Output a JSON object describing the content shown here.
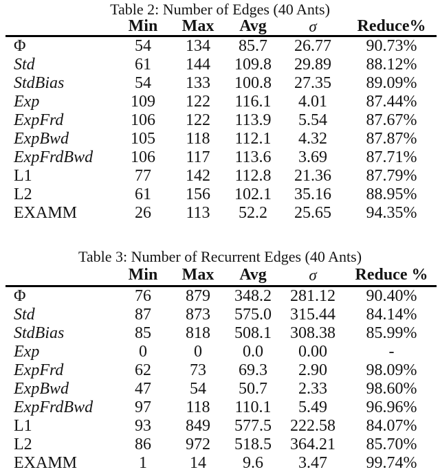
{
  "page": {
    "background_color": "#ffffff",
    "text_color": "#141414",
    "rule_color": "#000000"
  },
  "tables": [
    {
      "caption": "Table 2: Number of Edges (40 Ants)",
      "headers": [
        "Min",
        "Max",
        "Avg",
        "σ",
        "Reduce%"
      ],
      "rows": [
        {
          "label": "Φ",
          "label_italic": false,
          "values": [
            "54",
            "134",
            "85.7",
            "26.77",
            "90.73%"
          ]
        },
        {
          "label": "Std",
          "label_italic": true,
          "values": [
            "61",
            "144",
            "109.8",
            "29.89",
            "88.12%"
          ]
        },
        {
          "label": "StdBias",
          "label_italic": true,
          "values": [
            "54",
            "133",
            "100.8",
            "27.35",
            "89.09%"
          ]
        },
        {
          "label": "Exp",
          "label_italic": true,
          "values": [
            "109",
            "122",
            "116.1",
            "4.01",
            "87.44%"
          ]
        },
        {
          "label": "ExpFrd",
          "label_italic": true,
          "values": [
            "106",
            "122",
            "113.9",
            "5.54",
            "87.67%"
          ]
        },
        {
          "label": "ExpBwd",
          "label_italic": true,
          "values": [
            "105",
            "118",
            "112.1",
            "4.32",
            "87.87%"
          ]
        },
        {
          "label": "ExpFrdBwd",
          "label_italic": true,
          "values": [
            "106",
            "117",
            "113.6",
            "3.69",
            "87.71%"
          ]
        },
        {
          "label": "L1",
          "label_italic": false,
          "values": [
            "77",
            "142",
            "112.8",
            "21.36",
            "87.79%"
          ]
        },
        {
          "label": "L2",
          "label_italic": false,
          "values": [
            "61",
            "156",
            "102.1",
            "35.16",
            "88.95%"
          ]
        },
        {
          "label": "EXAMM",
          "label_italic": false,
          "values": [
            "26",
            "113",
            "52.2",
            "25.65",
            "94.35%"
          ]
        }
      ]
    },
    {
      "caption": "Table 3: Number of Recurrent Edges (40 Ants)",
      "headers": [
        "Min",
        "Max",
        "Avg",
        "σ",
        "Reduce %"
      ],
      "rows": [
        {
          "label": "Φ",
          "label_italic": false,
          "values": [
            "76",
            "879",
            "348.2",
            "281.12",
            "90.40%"
          ]
        },
        {
          "label": "Std",
          "label_italic": true,
          "values": [
            "87",
            "873",
            "575.0",
            "315.44",
            "84.14%"
          ]
        },
        {
          "label": "StdBias",
          "label_italic": true,
          "values": [
            "85",
            "818",
            "508.1",
            "308.38",
            "85.99%"
          ]
        },
        {
          "label": "Exp",
          "label_italic": true,
          "values": [
            "0",
            "0",
            "0.0",
            "0.00",
            "-"
          ]
        },
        {
          "label": "ExpFrd",
          "label_italic": true,
          "values": [
            "62",
            "73",
            "69.3",
            "2.90",
            "98.09%"
          ]
        },
        {
          "label": "ExpBwd",
          "label_italic": true,
          "values": [
            "47",
            "54",
            "50.7",
            "2.33",
            "98.60%"
          ]
        },
        {
          "label": "ExpFrdBwd",
          "label_italic": true,
          "values": [
            "97",
            "118",
            "110.1",
            "5.49",
            "96.96%"
          ]
        },
        {
          "label": "L1",
          "label_italic": false,
          "values": [
            "93",
            "849",
            "577.5",
            "222.58",
            "84.07%"
          ]
        },
        {
          "label": "L2",
          "label_italic": false,
          "values": [
            "86",
            "972",
            "518.5",
            "364.21",
            "85.70%"
          ]
        },
        {
          "label": "EXAMM",
          "label_italic": false,
          "values": [
            "1",
            "14",
            "9.6",
            "3.47",
            "99.74%"
          ]
        }
      ]
    }
  ]
}
